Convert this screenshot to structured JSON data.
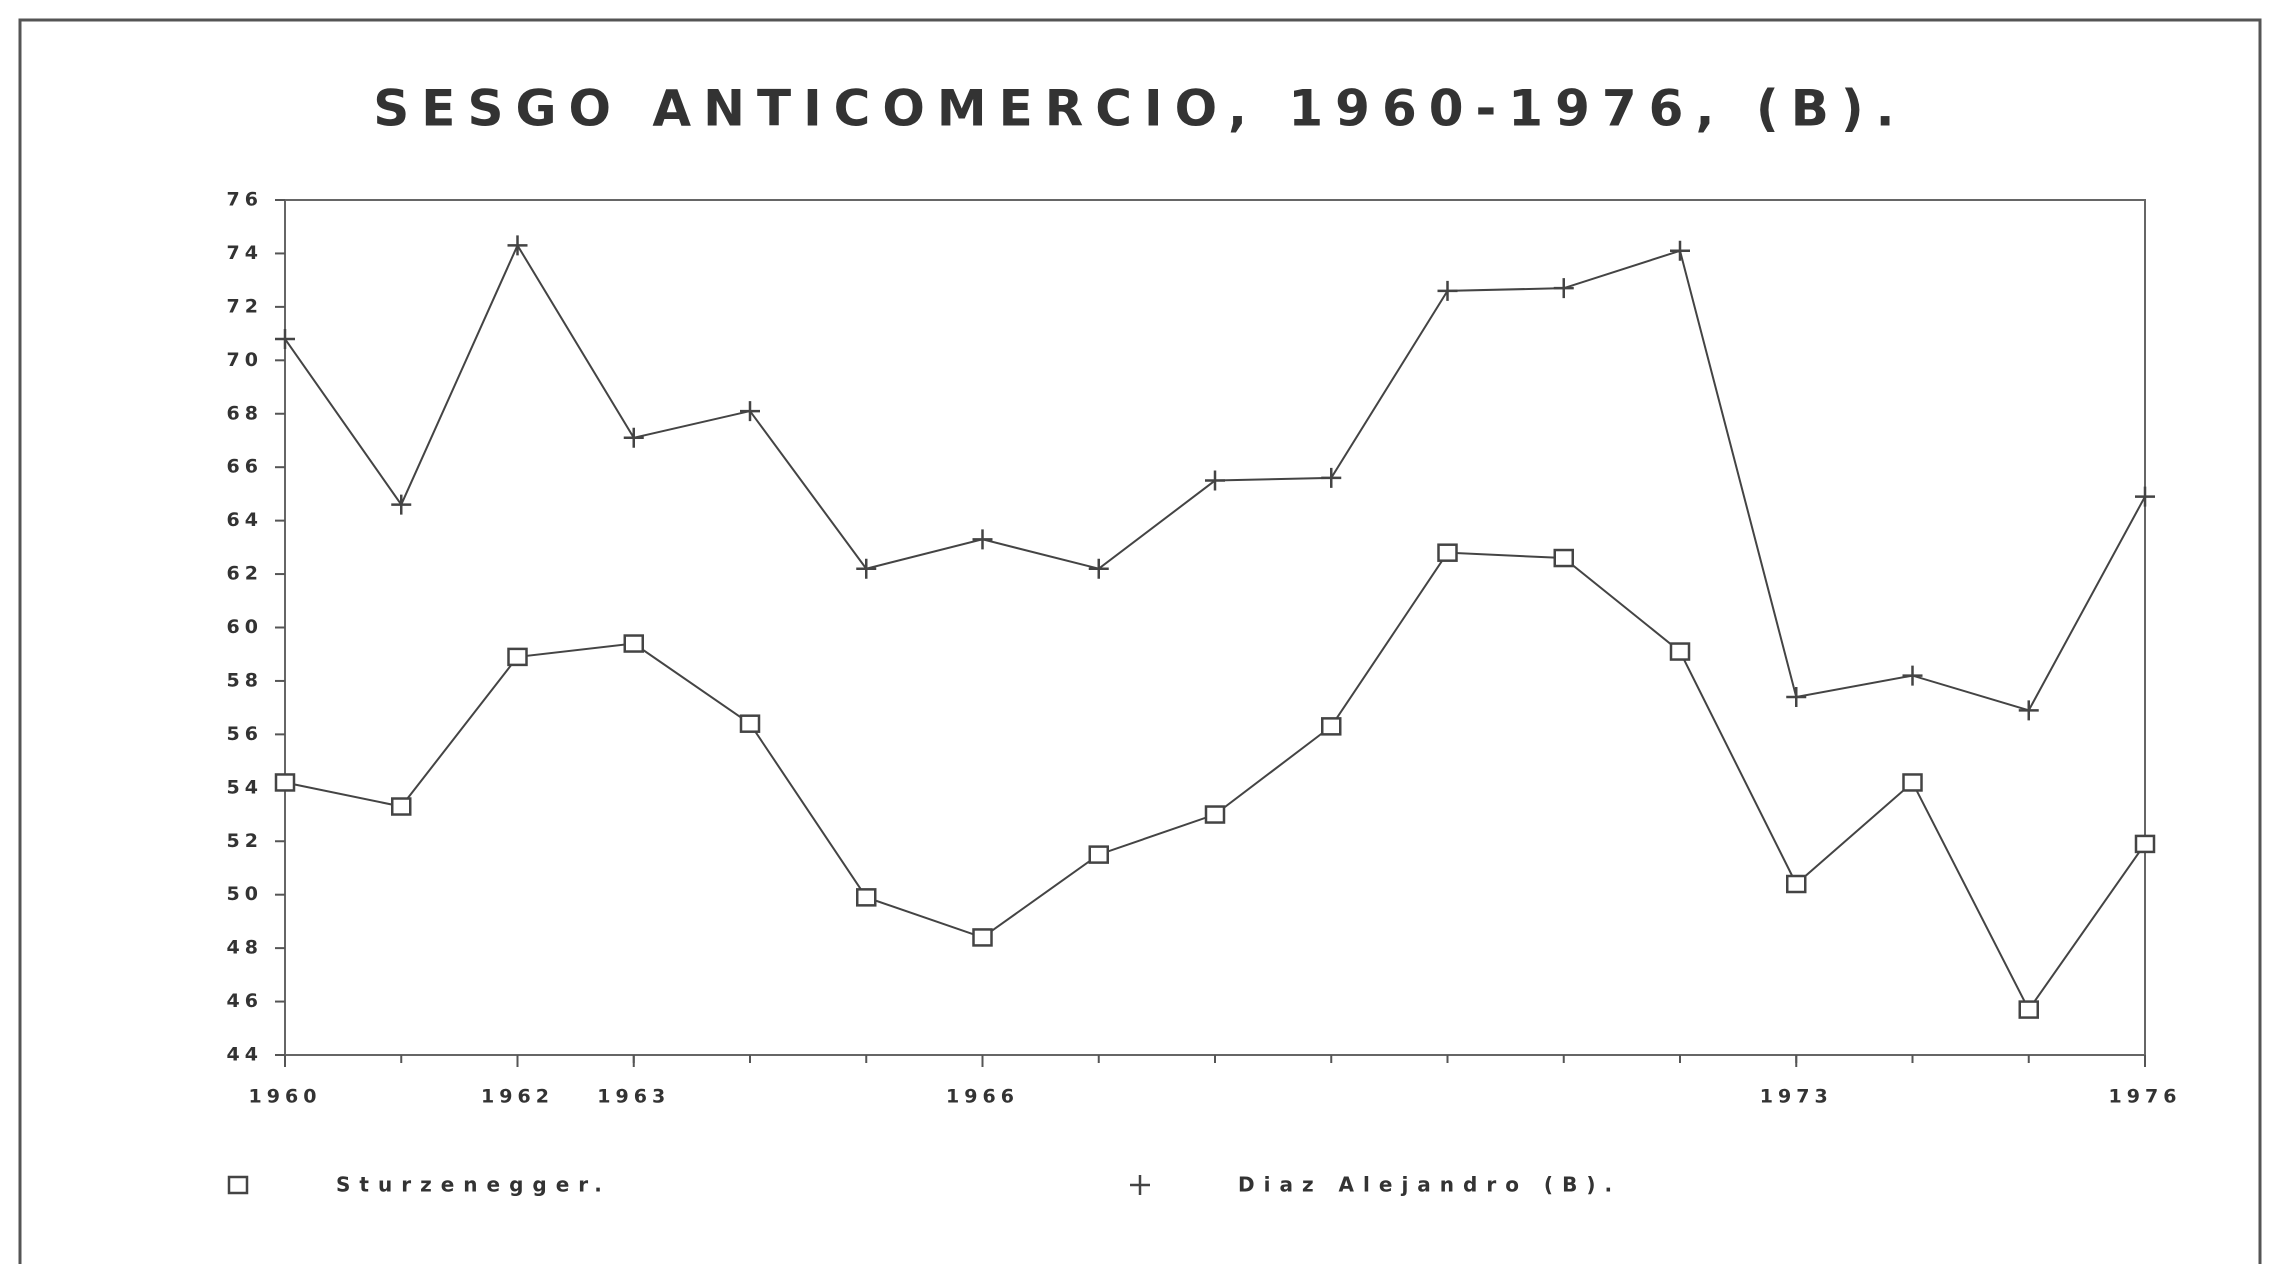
{
  "chart_data": {
    "type": "line",
    "title": "SESGO ANTICOMERCIO, 1960-1976, (B).",
    "x": [
      1960,
      1961,
      1962,
      1963,
      1964,
      1965,
      1966,
      1967,
      1968,
      1969,
      1970,
      1971,
      1972,
      1973,
      1974,
      1975,
      1976
    ],
    "xlim": [
      1960,
      1976
    ],
    "xticks": [
      1960,
      1962,
      1963,
      1966,
      1973,
      1976
    ],
    "ylim": [
      44,
      76
    ],
    "yticks": [
      44,
      46,
      48,
      50,
      52,
      54,
      56,
      58,
      60,
      62,
      64,
      66,
      68,
      70,
      72,
      74,
      76
    ],
    "grid": false,
    "legend": "bottom",
    "series": [
      {
        "name": "Sturzenegger.",
        "color": "#444444",
        "marker": "square",
        "values": [
          54.2,
          53.3,
          58.9,
          59.4,
          56.4,
          49.9,
          48.4,
          51.5,
          53.0,
          56.3,
          62.8,
          62.6,
          59.1,
          50.4,
          54.2,
          45.7,
          51.9
        ]
      },
      {
        "name": "Diaz Alejandro (B).",
        "color": "#444444",
        "marker": "plus",
        "values": [
          70.8,
          64.6,
          74.3,
          67.1,
          68.1,
          62.2,
          63.3,
          62.2,
          65.5,
          65.6,
          72.6,
          72.7,
          74.1,
          57.4,
          58.2,
          56.9,
          64.9
        ]
      }
    ]
  }
}
